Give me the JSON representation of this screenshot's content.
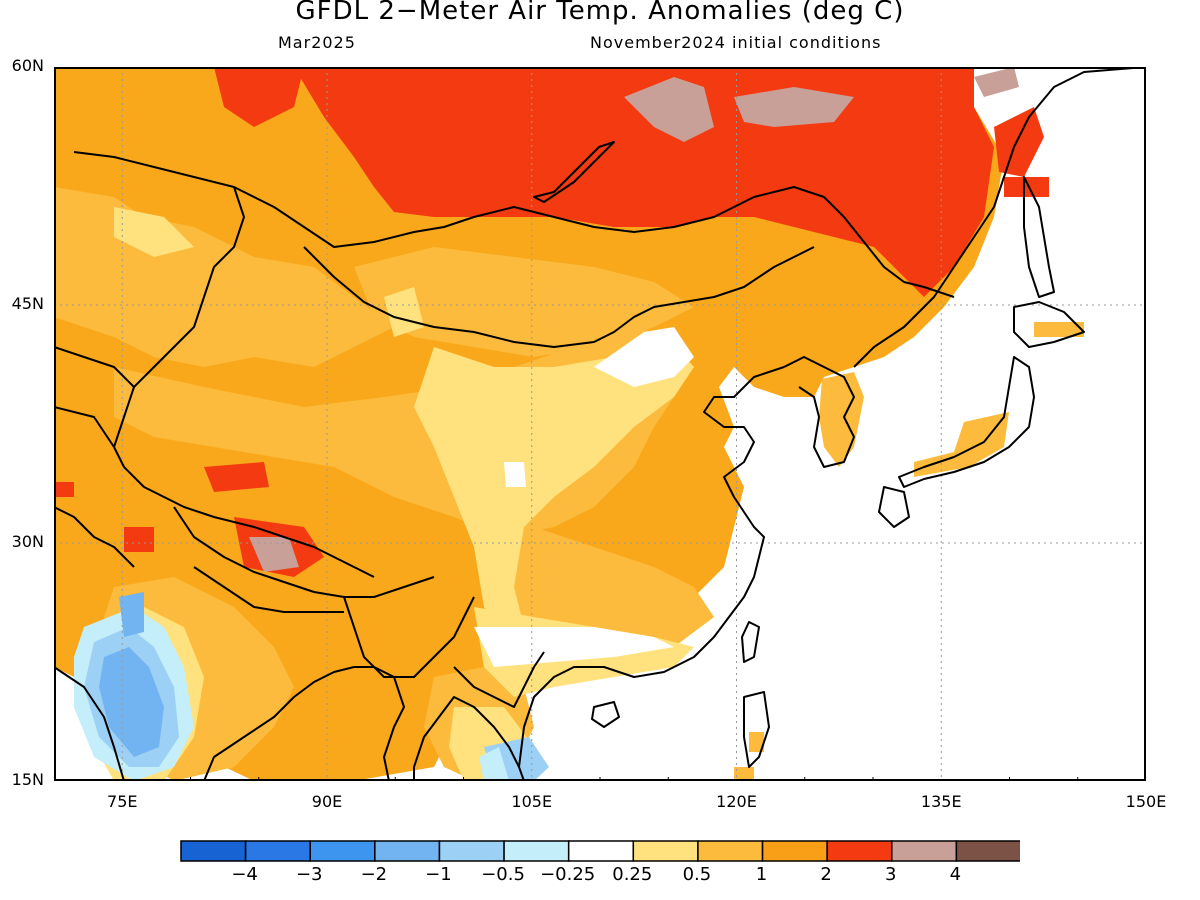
{
  "title": "GFDL 2−Meter Air Temp. Anomalies (deg C)",
  "subtitle_left": "Mar2025",
  "subtitle_right": "November2024 initial conditions",
  "map": {
    "lon_range": [
      70,
      150
    ],
    "lat_range": [
      15,
      60
    ],
    "lat_labels": [
      "60N",
      "45N",
      "30N",
      "15N"
    ],
    "lat_values": [
      60,
      45,
      30,
      15
    ],
    "lon_labels": [
      "75E",
      "90E",
      "105E",
      "120E",
      "135E",
      "150E"
    ],
    "lon_values": [
      75,
      90,
      105,
      120,
      135,
      150
    ],
    "ocean_color": "#ffffff",
    "land_base_color": "#f9a81b"
  },
  "colorbar": {
    "colors": [
      "#1763d4",
      "#2a78e6",
      "#3d95f0",
      "#72b4f2",
      "#9dd0f5",
      "#c3eefa",
      "#ffffff",
      "#ffe27e",
      "#fcbb3c",
      "#f89e17",
      "#f33a10",
      "#c8a098",
      "#7c5247"
    ],
    "labels": [
      "−4",
      "−3",
      "−2",
      "−1",
      "−0.5",
      "−0.25",
      "0.25",
      "0.5",
      "1",
      "2",
      "3",
      "4"
    ]
  }
}
